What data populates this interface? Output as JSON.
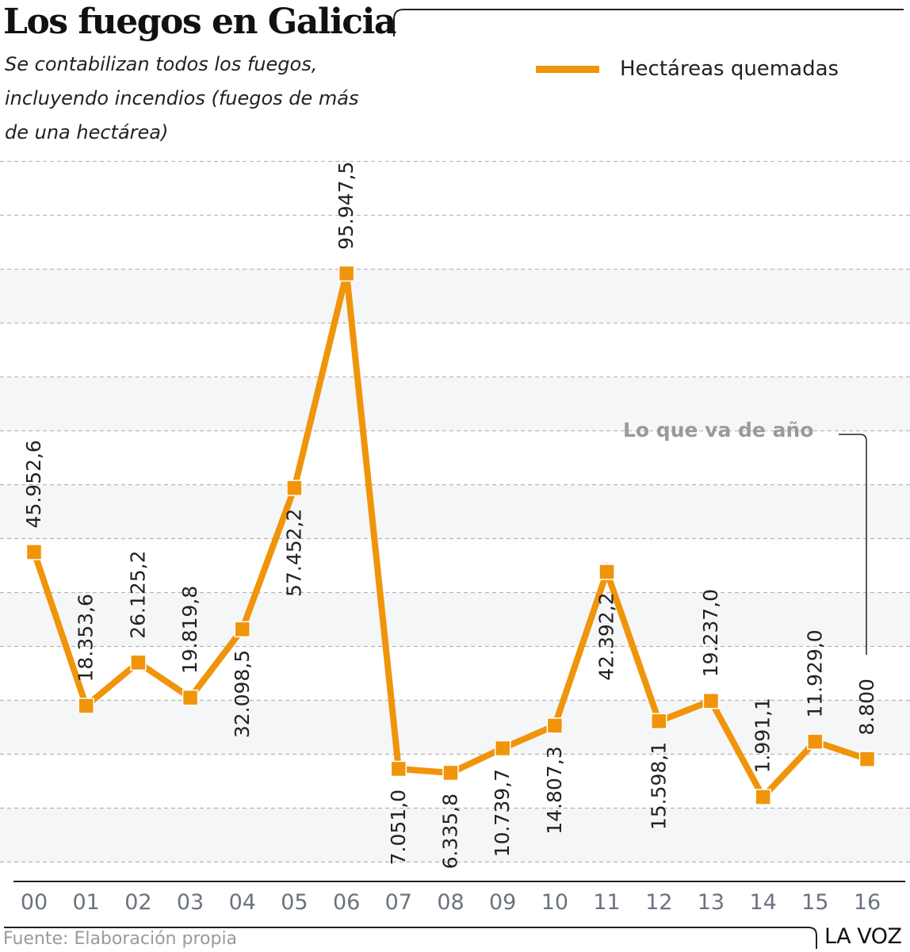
{
  "header": {
    "title": "Los fuegos en Galicia",
    "subtitle": "Se contabilizan todos los fuegos, incluyendo incendios (fuegos de más de una hectárea)"
  },
  "legend": {
    "label": "Hectáreas quemadas",
    "color": "#f0940a"
  },
  "annotation": {
    "text": "Lo que va de año",
    "target_category": "16"
  },
  "footer": {
    "source": "Fuente: Elaboración propia",
    "brand": "LA VOZ"
  },
  "chart_data": {
    "type": "line",
    "title": "Los fuegos en Galicia",
    "xlabel": "",
    "ylabel": "",
    "categories": [
      "00",
      "01",
      "02",
      "03",
      "04",
      "05",
      "06",
      "07",
      "08",
      "09",
      "10",
      "11",
      "12",
      "13",
      "14",
      "15",
      "16"
    ],
    "series": [
      {
        "name": "Hectáreas quemadas",
        "color": "#f0940a",
        "values": [
          45952.6,
          18353.6,
          26125.2,
          19819.8,
          32098.5,
          57452.2,
          95947.5,
          7051.0,
          6335.8,
          10739.7,
          14807.3,
          42392.2,
          15598.1,
          19237.0,
          1991.1,
          11929.0,
          8800
        ],
        "labels": [
          "45.952,6",
          "18.353,6",
          "26.125,2",
          "19.819,8",
          "32.098,5",
          "57.452,2",
          "95.947,5",
          "7.051,0",
          "6.335,8",
          "10.739,7",
          "14.807,3",
          "42.392,2",
          "15.598,1",
          "19.237,0",
          "1.991,1",
          "11.929,0",
          "8.800"
        ],
        "label_position": [
          "above",
          "above",
          "above",
          "above",
          "below",
          "below",
          "above",
          "below",
          "below",
          "below",
          "below",
          "below",
          "below",
          "above",
          "above",
          "above",
          "above"
        ]
      }
    ],
    "ylim": [
      -13000,
      120000
    ],
    "grid": true,
    "gridline_step": 10000,
    "legend_position": "top-right",
    "y_tick_labels_shown": false
  }
}
